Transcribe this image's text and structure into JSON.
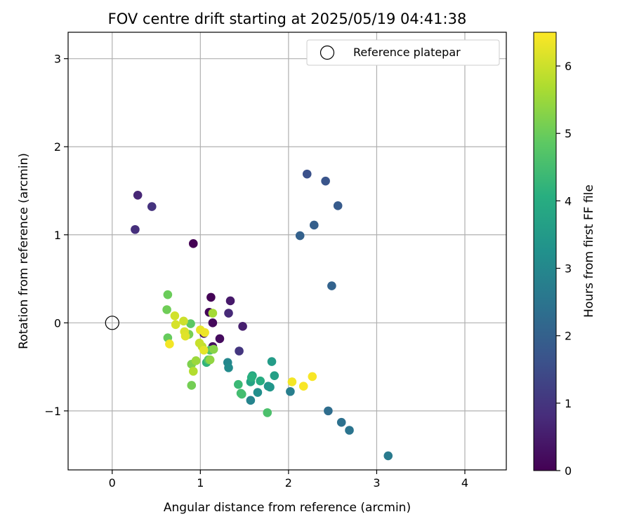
{
  "chart_data": {
    "type": "scatter",
    "title": "FOV centre drift starting at 2025/05/19 04:41:38",
    "xlabel": "Angular distance from reference (arcmin)",
    "ylabel": "Rotation from reference (arcmin)",
    "xlim": [
      -0.5,
      4.47
    ],
    "ylim": [
      -1.67,
      3.3
    ],
    "x_ticks": [
      "0",
      "1",
      "2",
      "3",
      "4"
    ],
    "y_ticks": [
      "−1",
      "0",
      "1",
      "2",
      "3"
    ],
    "grid": true,
    "legend": {
      "placement": "top-right",
      "label": "Reference platepar"
    },
    "reference_point": {
      "x": 0.0,
      "y": 0.0
    },
    "colorbar": {
      "label": "Hours from first FF file",
      "range": [
        0,
        6.5
      ],
      "ticks": [
        "0",
        "1",
        "2",
        "3",
        "4",
        "5",
        "6"
      ],
      "colormap": "viridis"
    },
    "points": [
      {
        "x": 0.92,
        "y": 0.9,
        "c": 0.0
      },
      {
        "x": 1.12,
        "y": 0.29,
        "c": 0.05
      },
      {
        "x": 1.1,
        "y": 0.12,
        "c": 0.1
      },
      {
        "x": 1.14,
        "y": 0.0,
        "c": 0.15
      },
      {
        "x": 1.22,
        "y": -0.18,
        "c": 0.2
      },
      {
        "x": 1.14,
        "y": -0.27,
        "c": 0.25
      },
      {
        "x": 1.04,
        "y": -0.12,
        "c": 0.3
      },
      {
        "x": 1.34,
        "y": 0.25,
        "c": 0.45
      },
      {
        "x": 1.48,
        "y": -0.04,
        "c": 0.55
      },
      {
        "x": 0.29,
        "y": 1.45,
        "c": 0.7
      },
      {
        "x": 1.32,
        "y": 0.11,
        "c": 0.75
      },
      {
        "x": 0.26,
        "y": 1.06,
        "c": 0.85
      },
      {
        "x": 0.45,
        "y": 1.32,
        "c": 0.95
      },
      {
        "x": 1.44,
        "y": -0.32,
        "c": 1.0
      },
      {
        "x": 2.21,
        "y": 1.69,
        "c": 1.6
      },
      {
        "x": 2.42,
        "y": 1.61,
        "c": 1.7
      },
      {
        "x": 2.56,
        "y": 1.33,
        "c": 1.85
      },
      {
        "x": 2.29,
        "y": 1.11,
        "c": 1.95
      },
      {
        "x": 2.13,
        "y": 0.99,
        "c": 2.0
      },
      {
        "x": 2.49,
        "y": 0.42,
        "c": 2.05
      },
      {
        "x": 2.45,
        "y": -1.0,
        "c": 2.3
      },
      {
        "x": 2.6,
        "y": -1.13,
        "c": 2.4
      },
      {
        "x": 2.69,
        "y": -1.22,
        "c": 2.5
      },
      {
        "x": 3.13,
        "y": -1.51,
        "c": 2.65
      },
      {
        "x": 2.02,
        "y": -0.78,
        "c": 2.75
      },
      {
        "x": 1.57,
        "y": -0.88,
        "c": 2.9
      },
      {
        "x": 1.31,
        "y": -0.45,
        "c": 3.0
      },
      {
        "x": 1.32,
        "y": -0.51,
        "c": 3.1
      },
      {
        "x": 1.65,
        "y": -0.79,
        "c": 3.2
      },
      {
        "x": 1.77,
        "y": -0.72,
        "c": 3.3
      },
      {
        "x": 1.79,
        "y": -0.73,
        "c": 3.4
      },
      {
        "x": 1.81,
        "y": -0.44,
        "c": 3.55
      },
      {
        "x": 1.84,
        "y": -0.6,
        "c": 3.65
      },
      {
        "x": 1.57,
        "y": -0.67,
        "c": 3.75
      },
      {
        "x": 1.59,
        "y": -0.6,
        "c": 3.9
      },
      {
        "x": 1.68,
        "y": -0.66,
        "c": 4.0
      },
      {
        "x": 1.58,
        "y": -0.62,
        "c": 4.1
      },
      {
        "x": 1.07,
        "y": -0.45,
        "c": 4.2
      },
      {
        "x": 1.43,
        "y": -0.7,
        "c": 4.35
      },
      {
        "x": 1.46,
        "y": -0.8,
        "c": 4.45
      },
      {
        "x": 1.47,
        "y": -0.81,
        "c": 4.5
      },
      {
        "x": 1.76,
        "y": -1.02,
        "c": 4.6
      },
      {
        "x": 1.11,
        "y": -0.31,
        "c": 4.7
      },
      {
        "x": 1.09,
        "y": -0.42,
        "c": 4.75
      },
      {
        "x": 0.89,
        "y": -0.01,
        "c": 4.85
      },
      {
        "x": 0.63,
        "y": -0.17,
        "c": 4.95
      },
      {
        "x": 0.63,
        "y": 0.32,
        "c": 5.0
      },
      {
        "x": 0.62,
        "y": 0.15,
        "c": 5.05
      },
      {
        "x": 0.9,
        "y": -0.71,
        "c": 5.1
      },
      {
        "x": 0.87,
        "y": -0.13,
        "c": 5.15
      },
      {
        "x": 0.9,
        "y": -0.47,
        "c": 5.2
      },
      {
        "x": 1.15,
        "y": -0.3,
        "c": 5.3
      },
      {
        "x": 1.11,
        "y": -0.42,
        "c": 5.4
      },
      {
        "x": 0.95,
        "y": -0.43,
        "c": 5.5
      },
      {
        "x": 1.14,
        "y": 0.11,
        "c": 5.6
      },
      {
        "x": 0.92,
        "y": -0.55,
        "c": 5.75
      },
      {
        "x": 1.02,
        "y": -0.27,
        "c": 5.85
      },
      {
        "x": 0.99,
        "y": -0.23,
        "c": 5.95
      },
      {
        "x": 0.81,
        "y": 0.02,
        "c": 6.0
      },
      {
        "x": 0.71,
        "y": 0.08,
        "c": 6.05
      },
      {
        "x": 0.72,
        "y": -0.02,
        "c": 6.1
      },
      {
        "x": 0.82,
        "y": -0.1,
        "c": 6.15
      },
      {
        "x": 0.83,
        "y": -0.15,
        "c": 6.2
      },
      {
        "x": 1.04,
        "y": -0.31,
        "c": 6.25
      },
      {
        "x": 1.0,
        "y": -0.08,
        "c": 6.3
      },
      {
        "x": 1.05,
        "y": -0.11,
        "c": 6.35
      },
      {
        "x": 0.65,
        "y": -0.24,
        "c": 6.4
      },
      {
        "x": 2.04,
        "y": -0.67,
        "c": 6.4
      },
      {
        "x": 2.17,
        "y": -0.72,
        "c": 6.45
      },
      {
        "x": 2.27,
        "y": -0.61,
        "c": 6.45
      }
    ]
  }
}
